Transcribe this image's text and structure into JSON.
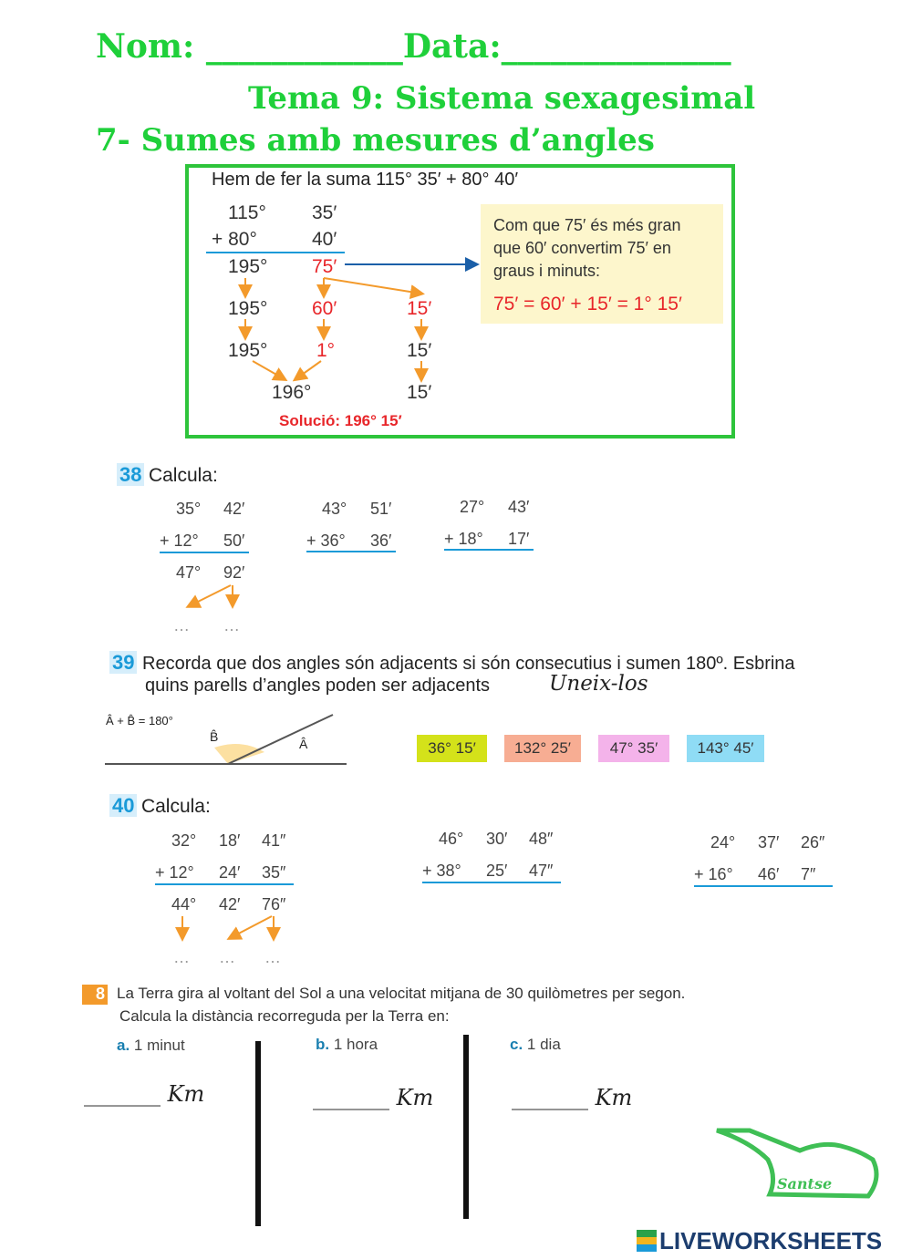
{
  "header": {
    "name_line": "Nom: ____________Data:______________",
    "topic": "Tema 9: Sistema sexagesimal",
    "section": "7- Sumes amb mesures d’angles"
  },
  "example": {
    "intro": "Hem de fer la suma  115°  35′  +   80°  40′",
    "r1": [
      "115°",
      "35′"
    ],
    "r2": [
      "+   80°",
      "40′"
    ],
    "r3": [
      "195°",
      "75′"
    ],
    "r4": [
      "195°",
      "60′",
      "15′"
    ],
    "r5": [
      "195°",
      "1°",
      "15′"
    ],
    "r6": [
      "196°",
      "15′"
    ],
    "note": [
      "Com que 75′ és més gran",
      "que 60′ convertim 75′ en",
      "graus i minuts:"
    ],
    "formula": "75′ = 60′ + 15′ = 1° 15′",
    "solution": "Solució:  196°  15′"
  },
  "ex38": {
    "num": "38",
    "title": "Calcula:",
    "ops": [
      {
        "a": [
          "35°",
          "42′"
        ],
        "b": [
          "+ 12°",
          "50′"
        ],
        "r": [
          "47°",
          "92′"
        ],
        "dots": [
          "…",
          "…"
        ]
      },
      {
        "a": [
          "43°",
          "51′"
        ],
        "b": [
          "+ 36°",
          "36′"
        ]
      },
      {
        "a": [
          "27°",
          "43′"
        ],
        "b": [
          "+ 18°",
          "17′"
        ]
      }
    ]
  },
  "ex39": {
    "num": "39",
    "line1": "Recorda que dos angles són adjacents si són consecutius i sumen 180º. Esbrina",
    "line2": "quins parells d’angles poden ser adjacents",
    "handwritten": "Uneix-los",
    "diagram_formula": "Â + B̂ = 180°",
    "label_b": "B̂",
    "label_a": "Â",
    "chips": [
      {
        "label": "36° 15′",
        "color": "#d4e21a"
      },
      {
        "label": "132° 25′",
        "color": "#f7ad93"
      },
      {
        "label": "47° 35′",
        "color": "#f4b3ea"
      },
      {
        "label": "143° 45′",
        "color": "#8fdcf5"
      }
    ]
  },
  "ex40": {
    "num": "40",
    "title": "Calcula:",
    "ops": [
      {
        "a": [
          "32°",
          "18′",
          "41″"
        ],
        "b": [
          "+ 12°",
          "24′",
          "35″"
        ],
        "r": [
          "44°",
          "42′",
          "76″"
        ],
        "dots": [
          "…",
          "…",
          "…"
        ]
      },
      {
        "a": [
          "46°",
          "30′",
          "48″"
        ],
        "b": [
          "+ 38°",
          "25′",
          "47″"
        ]
      },
      {
        "a": [
          "24°",
          "37′",
          "26″"
        ],
        "b": [
          "+ 16°",
          "46′",
          "7″"
        ]
      }
    ]
  },
  "ex8": {
    "num": "8",
    "line1": "La Terra gira al voltant del Sol a una velocitat mitjana de 30 quilòmetres per segon.",
    "line2": "Calcula  la distància recorreguda per la Terra en:",
    "parts": [
      {
        "letter": "a.",
        "text": "1 minut",
        "answer": "_______ Km"
      },
      {
        "letter": "b.",
        "text": "1 hora",
        "answer": "_______ Km"
      },
      {
        "letter": "c.",
        "text": "1 dia",
        "answer": "_______ Km"
      }
    ]
  },
  "logo": {
    "text": "Santse"
  },
  "footer": {
    "brand": "LIVEWORKSHEETS"
  }
}
